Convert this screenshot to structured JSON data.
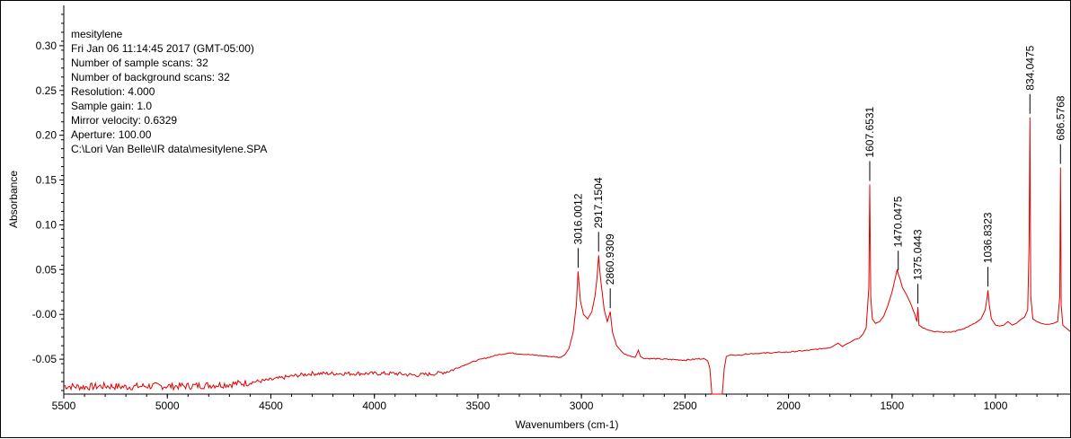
{
  "chart_data": {
    "type": "line",
    "xlabel": "Wavenumbers (cm-1)",
    "ylabel": "Absorbance",
    "xlim": [
      5500,
      640
    ],
    "ylim": [
      -0.089,
      0.345
    ],
    "x_ticks": [
      5500,
      5000,
      4500,
      4000,
      3500,
      3000,
      2500,
      2000,
      1500,
      1000
    ],
    "x_tick_labels": [
      "5500",
      "5000",
      "4500",
      "4000",
      "3500",
      "3000",
      "2500",
      "2000",
      "1500",
      "1000"
    ],
    "y_ticks": [
      -0.05,
      0.0,
      0.05,
      0.1,
      0.15,
      0.2,
      0.25,
      0.3
    ],
    "y_tick_labels": [
      "-0.05",
      "-0.00",
      "0.05",
      "0.10",
      "0.15",
      "0.20",
      "0.25",
      "0.30"
    ],
    "grid": false,
    "line_color": "#e00000",
    "info": [
      "mesitylene",
      "Fri Jan 06 11:14:45 2017 (GMT-05:00)",
      "Number of sample scans:  32",
      "Number of background scans:  32",
      "Resolution:   4.000",
      "Sample gain:  1.0",
      "Mirror velocity:  0.6329",
      "Aperture:  100.00",
      "C:\\Lori Van Belle\\IR data\\mesitylene.SPA"
    ],
    "peaks": [
      {
        "x": 3016.0012,
        "y": 0.048,
        "label": "3016.0012"
      },
      {
        "x": 2917.1504,
        "y": 0.066,
        "label": "2917.1504"
      },
      {
        "x": 2860.9309,
        "y": 0.003,
        "label": "2860.9309"
      },
      {
        "x": 1607.6531,
        "y": 0.145,
        "label": "1607.6531"
      },
      {
        "x": 1470.0475,
        "y": 0.045,
        "label": "1470.0475"
      },
      {
        "x": 1375.0443,
        "y": 0.008,
        "label": "1375.0443"
      },
      {
        "x": 1036.8323,
        "y": 0.027,
        "label": "1036.8323"
      },
      {
        "x": 834.0475,
        "y": 0.22,
        "label": "834.0475"
      },
      {
        "x": 686.5768,
        "y": 0.164,
        "label": "686.5768"
      }
    ],
    "series": [
      {
        "points": [
          [
            5500,
            -0.08
          ],
          [
            5400,
            -0.081
          ],
          [
            5300,
            -0.08
          ],
          [
            5200,
            -0.081
          ],
          [
            5100,
            -0.08
          ],
          [
            5000,
            -0.08
          ],
          [
            4900,
            -0.08
          ],
          [
            4800,
            -0.079
          ],
          [
            4700,
            -0.078
          ],
          [
            4600,
            -0.076
          ],
          [
            4500,
            -0.073
          ],
          [
            4400,
            -0.069
          ],
          [
            4300,
            -0.066
          ],
          [
            4200,
            -0.066
          ],
          [
            4100,
            -0.066
          ],
          [
            4000,
            -0.066
          ],
          [
            3900,
            -0.066
          ],
          [
            3800,
            -0.068
          ],
          [
            3700,
            -0.066
          ],
          [
            3650,
            -0.064
          ],
          [
            3600,
            -0.06
          ],
          [
            3550,
            -0.055
          ],
          [
            3500,
            -0.051
          ],
          [
            3450,
            -0.048
          ],
          [
            3400,
            -0.045
          ],
          [
            3350,
            -0.043
          ],
          [
            3300,
            -0.044
          ],
          [
            3250,
            -0.045
          ],
          [
            3200,
            -0.046
          ],
          [
            3150,
            -0.047
          ],
          [
            3100,
            -0.048
          ],
          [
            3080,
            -0.045
          ],
          [
            3060,
            -0.038
          ],
          [
            3040,
            -0.02
          ],
          [
            3025,
            0.01
          ],
          [
            3016,
            0.048
          ],
          [
            3005,
            0.015
          ],
          [
            2990,
            0.0
          ],
          [
            2970,
            -0.005
          ],
          [
            2950,
            0.003
          ],
          [
            2935,
            0.02
          ],
          [
            2925,
            0.04
          ],
          [
            2917,
            0.066
          ],
          [
            2910,
            0.045
          ],
          [
            2900,
            0.025
          ],
          [
            2890,
            0.005
          ],
          [
            2875,
            -0.008
          ],
          [
            2861,
            0.003
          ],
          [
            2850,
            -0.02
          ],
          [
            2830,
            -0.035
          ],
          [
            2800,
            -0.043
          ],
          [
            2760,
            -0.047
          ],
          [
            2740,
            -0.048
          ],
          [
            2725,
            -0.04
          ],
          [
            2715,
            -0.047
          ],
          [
            2700,
            -0.049
          ],
          [
            2600,
            -0.05
          ],
          [
            2500,
            -0.051
          ],
          [
            2450,
            -0.05
          ],
          [
            2410,
            -0.049
          ],
          [
            2390,
            -0.052
          ],
          [
            2380,
            -0.06
          ],
          [
            2370,
            -0.089
          ],
          [
            2340,
            -0.089
          ],
          [
            2320,
            -0.089
          ],
          [
            2310,
            -0.06
          ],
          [
            2300,
            -0.047
          ],
          [
            2280,
            -0.045
          ],
          [
            2250,
            -0.046
          ],
          [
            2200,
            -0.044
          ],
          [
            2100,
            -0.043
          ],
          [
            2000,
            -0.042
          ],
          [
            1900,
            -0.04
          ],
          [
            1800,
            -0.037
          ],
          [
            1760,
            -0.032
          ],
          [
            1740,
            -0.036
          ],
          [
            1720,
            -0.033
          ],
          [
            1700,
            -0.031
          ],
          [
            1680,
            -0.028
          ],
          [
            1660,
            -0.027
          ],
          [
            1640,
            -0.022
          ],
          [
            1625,
            -0.015
          ],
          [
            1612,
            0.03
          ],
          [
            1607.65,
            0.145
          ],
          [
            1603,
            0.02
          ],
          [
            1595,
            -0.005
          ],
          [
            1580,
            -0.01
          ],
          [
            1560,
            -0.008
          ],
          [
            1540,
            -0.002
          ],
          [
            1520,
            0.01
          ],
          [
            1500,
            0.025
          ],
          [
            1485,
            0.04
          ],
          [
            1475,
            0.05
          ],
          [
            1470,
            0.045
          ],
          [
            1462,
            0.04
          ],
          [
            1450,
            0.03
          ],
          [
            1430,
            0.022
          ],
          [
            1410,
            0.012
          ],
          [
            1390,
            0.0
          ],
          [
            1380,
            -0.008
          ],
          [
            1375,
            0.008
          ],
          [
            1370,
            -0.012
          ],
          [
            1350,
            -0.015
          ],
          [
            1300,
            -0.019
          ],
          [
            1250,
            -0.02
          ],
          [
            1200,
            -0.019
          ],
          [
            1150,
            -0.016
          ],
          [
            1100,
            -0.01
          ],
          [
            1070,
            -0.005
          ],
          [
            1050,
            0.005
          ],
          [
            1040,
            0.02
          ],
          [
            1036.8,
            0.027
          ],
          [
            1030,
            0.01
          ],
          [
            1020,
            -0.005
          ],
          [
            1000,
            -0.012
          ],
          [
            980,
            -0.013
          ],
          [
            960,
            -0.012
          ],
          [
            940,
            -0.008
          ],
          [
            920,
            -0.012
          ],
          [
            900,
            -0.01
          ],
          [
            880,
            -0.006
          ],
          [
            860,
            -0.003
          ],
          [
            845,
            0.005
          ],
          [
            838,
            0.08
          ],
          [
            834.05,
            0.22
          ],
          [
            830,
            0.02
          ],
          [
            820,
            -0.005
          ],
          [
            800,
            -0.008
          ],
          [
            780,
            -0.01
          ],
          [
            760,
            -0.011
          ],
          [
            740,
            -0.011
          ],
          [
            720,
            -0.01
          ],
          [
            700,
            -0.008
          ],
          [
            690,
            0.02
          ],
          [
            686.6,
            0.164
          ],
          [
            683,
            0.01
          ],
          [
            675,
            -0.012
          ],
          [
            660,
            -0.015
          ],
          [
            640,
            -0.019
          ]
        ]
      }
    ]
  }
}
